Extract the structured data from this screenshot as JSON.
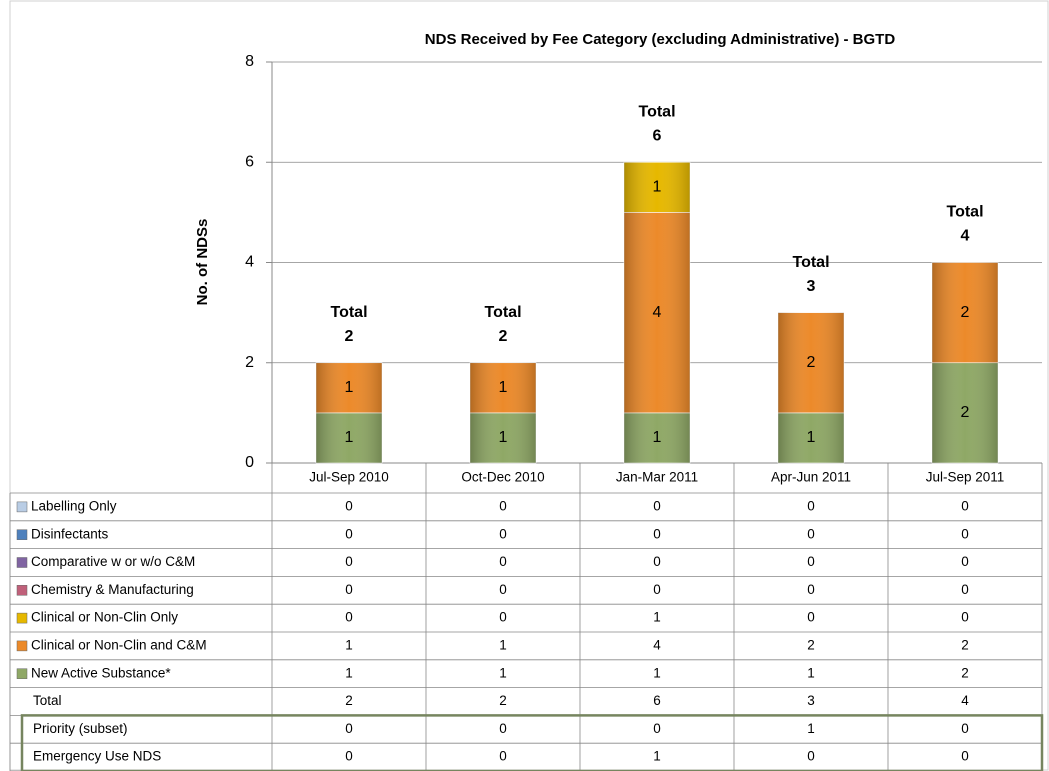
{
  "chart_data": {
    "type": "stacked_bar",
    "title": "NDS Received by Fee Category (excluding Administrative) - BGTD",
    "y_label": "No. of NDSs",
    "categories": [
      "Jul-Sep 2010",
      "Oct-Dec 2010",
      "Jan-Mar 2011",
      "Apr-Jun 2011",
      "Jul-Sep 2011"
    ],
    "series": [
      {
        "name": "Labelling Only",
        "color": "#b9cde5",
        "values": [
          0,
          0,
          0,
          0,
          0
        ]
      },
      {
        "name": "Disinfectants",
        "color": "#4f81bd",
        "values": [
          0,
          0,
          0,
          0,
          0
        ]
      },
      {
        "name": "Comparative w or w/o C&M",
        "color": "#8064a2",
        "values": [
          0,
          0,
          0,
          0,
          0
        ]
      },
      {
        "name": "Chemistry & Manufacturing",
        "color": "#c0607a",
        "values": [
          0,
          0,
          0,
          0,
          0
        ]
      },
      {
        "name": "Clinical or Non-Clin Only",
        "color": "#e6b800",
        "values": [
          0,
          0,
          1,
          0,
          0
        ]
      },
      {
        "name": "Clinical or Non-Clin and C&M",
        "color": "#ec8a2a",
        "values": [
          1,
          1,
          4,
          2,
          2
        ]
      },
      {
        "name": "New Active Substance*",
        "color": "#8fa866",
        "values": [
          1,
          1,
          1,
          1,
          2
        ]
      }
    ],
    "total": {
      "name": "Total",
      "values": [
        2,
        2,
        6,
        3,
        4
      ]
    },
    "extra_rows": [
      {
        "name": "Priority (subset)",
        "values": [
          0,
          0,
          0,
          1,
          0
        ]
      },
      {
        "name": "Emergency Use NDS",
        "values": [
          0,
          0,
          1,
          0,
          0
        ]
      }
    ],
    "ylim": [
      0,
      8
    ],
    "yticks": [
      0,
      2,
      4,
      6,
      8
    ],
    "grid": true
  }
}
